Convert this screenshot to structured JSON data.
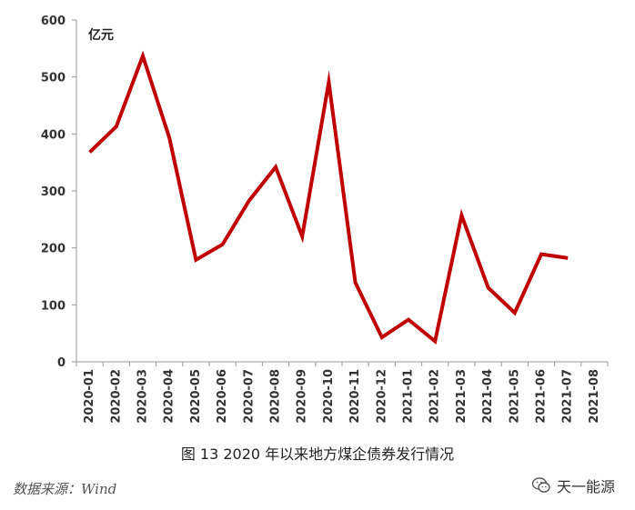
{
  "chart_data": {
    "type": "line",
    "unit_label": "亿元",
    "x": [
      "2020-01",
      "2020-02",
      "2020-03",
      "2020-04",
      "2020-05",
      "2020-06",
      "2020-07",
      "2020-08",
      "2020-09",
      "2020-10",
      "2020-11",
      "2020-12",
      "2021-01",
      "2021-02",
      "2021-03",
      "2021-04",
      "2021-05",
      "2021-06",
      "2021-07",
      "2021-08"
    ],
    "series": [
      {
        "color": "#c00000",
        "values": [
          368,
          413,
          537,
          393,
          179,
          206,
          283,
          342,
          220,
          491,
          139,
          43,
          74,
          36,
          257,
          130,
          86,
          189,
          182,
          null
        ]
      }
    ],
    "ylim": [
      0,
      600
    ],
    "yticks": [
      0,
      100,
      200,
      300,
      400,
      500,
      600
    ],
    "grid": false,
    "legend": "none"
  },
  "caption": "图 13 2020 年以来地方煤企债券发行情况",
  "source": "数据来源：Wind",
  "watermark": {
    "text": "天一能源",
    "icon": "wechat-icon"
  }
}
